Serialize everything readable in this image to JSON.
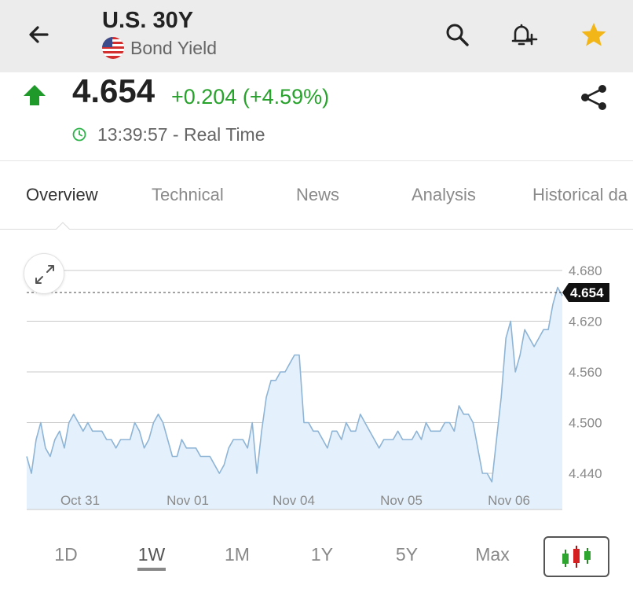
{
  "header": {
    "title": "U.S. 30Y",
    "subtitle": "Bond Yield",
    "icons": [
      "back-arrow-icon",
      "search-icon",
      "add-alert-bell-icon",
      "star-icon"
    ]
  },
  "quote": {
    "price": "4.654",
    "change": "+0.204 (+4.59%)",
    "time": "13:39:57 - Real Time",
    "up_color": "#27a22b"
  },
  "tabs": [
    {
      "label": "Overview",
      "active": true
    },
    {
      "label": "Technical"
    },
    {
      "label": "News"
    },
    {
      "label": "Analysis"
    },
    {
      "label": "Historical da"
    }
  ],
  "chart_data": {
    "type": "area",
    "x_labels": [
      "Oct 31",
      "Nov 01",
      "Nov 04",
      "Nov 05",
      "Nov 06"
    ],
    "y_ticks": [
      "4.680",
      "4.620",
      "4.560",
      "4.500",
      "4.440"
    ],
    "ylim": [
      4.4,
      4.7
    ],
    "current_value": "4.654",
    "grid": true,
    "line_color": "#8eb4d6",
    "fill_color": "#e4f1fc",
    "values": [
      4.46,
      4.44,
      4.48,
      4.5,
      4.47,
      4.46,
      4.48,
      4.49,
      4.47,
      4.5,
      4.51,
      4.5,
      4.49,
      4.5,
      4.49,
      4.49,
      4.49,
      4.48,
      4.48,
      4.47,
      4.48,
      4.48,
      4.48,
      4.5,
      4.49,
      4.47,
      4.48,
      4.5,
      4.51,
      4.5,
      4.48,
      4.46,
      4.46,
      4.48,
      4.47,
      4.47,
      4.47,
      4.46,
      4.46,
      4.46,
      4.45,
      4.44,
      4.45,
      4.47,
      4.48,
      4.48,
      4.48,
      4.47,
      4.5,
      4.44,
      4.49,
      4.53,
      4.55,
      4.55,
      4.56,
      4.56,
      4.57,
      4.58,
      4.58,
      4.5,
      4.5,
      4.49,
      4.49,
      4.48,
      4.47,
      4.49,
      4.49,
      4.48,
      4.5,
      4.49,
      4.49,
      4.51,
      4.5,
      4.49,
      4.48,
      4.47,
      4.48,
      4.48,
      4.48,
      4.49,
      4.48,
      4.48,
      4.48,
      4.49,
      4.48,
      4.5,
      4.49,
      4.49,
      4.49,
      4.5,
      4.5,
      4.49,
      4.52,
      4.51,
      4.51,
      4.5,
      4.47,
      4.44,
      4.44,
      4.43,
      4.48,
      4.53,
      4.6,
      4.62,
      4.56,
      4.58,
      4.61,
      4.6,
      4.59,
      4.6,
      4.61,
      4.61,
      4.64,
      4.66,
      4.65
    ]
  },
  "ranges": [
    {
      "label": "1D"
    },
    {
      "label": "1W",
      "active": true
    },
    {
      "label": "1M"
    },
    {
      "label": "1Y"
    },
    {
      "label": "5Y"
    },
    {
      "label": "Max"
    }
  ]
}
